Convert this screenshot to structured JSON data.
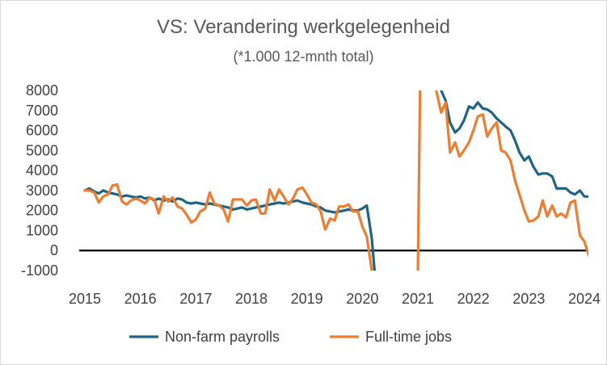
{
  "chart_data": {
    "type": "line",
    "title": "VS: Verandering werkgelegenheid",
    "subtitle": "(*1.000 12-mnth total)",
    "xlabel": "",
    "ylabel": "",
    "x_ticks": [
      "2015",
      "2016",
      "2017",
      "2018",
      "2019",
      "2020",
      "2021",
      "2022",
      "2023",
      "2024"
    ],
    "y_ticks": [
      "8000",
      "7000",
      "6000",
      "5000",
      "4000",
      "3000",
      "2000",
      "1000",
      "0",
      "-1000"
    ],
    "ylim": [
      -1000,
      8000
    ],
    "xlim": [
      2015.0,
      2024.1
    ],
    "grid": false,
    "legend_position": "bottom",
    "series": [
      {
        "name": "Non-farm payrolls",
        "color": "#1f6485",
        "points": [
          [
            2015.0,
            3000
          ],
          [
            2015.08,
            3100
          ],
          [
            2015.17,
            2950
          ],
          [
            2015.25,
            2850
          ],
          [
            2015.33,
            3000
          ],
          [
            2015.42,
            2900
          ],
          [
            2015.5,
            2850
          ],
          [
            2015.58,
            2800
          ],
          [
            2015.67,
            2700
          ],
          [
            2015.75,
            2750
          ],
          [
            2015.83,
            2700
          ],
          [
            2015.92,
            2650
          ],
          [
            2016.0,
            2700
          ],
          [
            2016.08,
            2600
          ],
          [
            2016.17,
            2650
          ],
          [
            2016.25,
            2500
          ],
          [
            2016.33,
            2600
          ],
          [
            2016.42,
            2500
          ],
          [
            2016.5,
            2550
          ],
          [
            2016.58,
            2450
          ],
          [
            2016.67,
            2600
          ],
          [
            2016.75,
            2550
          ],
          [
            2016.83,
            2400
          ],
          [
            2016.92,
            2350
          ],
          [
            2017.0,
            2400
          ],
          [
            2017.08,
            2350
          ],
          [
            2017.17,
            2300
          ],
          [
            2017.25,
            2350
          ],
          [
            2017.33,
            2300
          ],
          [
            2017.42,
            2250
          ],
          [
            2017.5,
            2200
          ],
          [
            2017.58,
            2150
          ],
          [
            2017.67,
            2050
          ],
          [
            2017.75,
            2100
          ],
          [
            2017.83,
            2150
          ],
          [
            2017.92,
            2050
          ],
          [
            2018.0,
            2100
          ],
          [
            2018.08,
            2150
          ],
          [
            2018.17,
            2200
          ],
          [
            2018.25,
            2250
          ],
          [
            2018.33,
            2300
          ],
          [
            2018.42,
            2350
          ],
          [
            2018.5,
            2400
          ],
          [
            2018.58,
            2350
          ],
          [
            2018.67,
            2400
          ],
          [
            2018.75,
            2450
          ],
          [
            2018.83,
            2500
          ],
          [
            2018.92,
            2400
          ],
          [
            2019.0,
            2350
          ],
          [
            2019.08,
            2300
          ],
          [
            2019.17,
            2200
          ],
          [
            2019.25,
            2150
          ],
          [
            2019.33,
            2000
          ],
          [
            2019.42,
            1950
          ],
          [
            2019.5,
            1900
          ],
          [
            2019.58,
            1950
          ],
          [
            2019.67,
            2000
          ],
          [
            2019.75,
            2050
          ],
          [
            2019.83,
            2000
          ],
          [
            2019.92,
            2000
          ],
          [
            2020.0,
            2100
          ],
          [
            2020.08,
            2250
          ],
          [
            2020.17,
            600
          ],
          [
            2020.22,
            -1000
          ]
        ],
        "points_segment_2": [
          [
            2021.42,
            8000
          ],
          [
            2021.5,
            7500
          ],
          [
            2021.58,
            6400
          ],
          [
            2021.67,
            5900
          ],
          [
            2021.75,
            6100
          ],
          [
            2021.83,
            6500
          ],
          [
            2021.92,
            7200
          ],
          [
            2022.0,
            7100
          ],
          [
            2022.08,
            7400
          ],
          [
            2022.17,
            7100
          ],
          [
            2022.25,
            7050
          ],
          [
            2022.33,
            6900
          ],
          [
            2022.42,
            6600
          ],
          [
            2022.5,
            6400
          ],
          [
            2022.58,
            6200
          ],
          [
            2022.67,
            6000
          ],
          [
            2022.75,
            5500
          ],
          [
            2022.83,
            4900
          ],
          [
            2022.92,
            4500
          ],
          [
            2023.0,
            4700
          ],
          [
            2023.08,
            4200
          ],
          [
            2023.17,
            3800
          ],
          [
            2023.25,
            3850
          ],
          [
            2023.33,
            3850
          ],
          [
            2023.42,
            3700
          ],
          [
            2023.5,
            3100
          ],
          [
            2023.58,
            3100
          ],
          [
            2023.67,
            3100
          ],
          [
            2023.75,
            2900
          ],
          [
            2023.83,
            2800
          ],
          [
            2023.92,
            3000
          ],
          [
            2024.0,
            2700
          ],
          [
            2024.08,
            2700
          ]
        ],
        "points_segment_0": [
          [
            2021.0,
            -1000
          ],
          [
            2021.0,
            -1000
          ]
        ]
      },
      {
        "name": "Full-time jobs",
        "color": "#ed7d31",
        "points": [
          [
            2015.0,
            3000
          ],
          [
            2015.08,
            3000
          ],
          [
            2015.17,
            2900
          ],
          [
            2015.25,
            2400
          ],
          [
            2015.33,
            2700
          ],
          [
            2015.42,
            2800
          ],
          [
            2015.5,
            3250
          ],
          [
            2015.58,
            3300
          ],
          [
            2015.67,
            2450
          ],
          [
            2015.75,
            2300
          ],
          [
            2015.83,
            2500
          ],
          [
            2015.92,
            2600
          ],
          [
            2016.0,
            2500
          ],
          [
            2016.08,
            2350
          ],
          [
            2016.17,
            2650
          ],
          [
            2016.25,
            2550
          ],
          [
            2016.33,
            1850
          ],
          [
            2016.42,
            2700
          ],
          [
            2016.5,
            2450
          ],
          [
            2016.58,
            2650
          ],
          [
            2016.67,
            2200
          ],
          [
            2016.75,
            2100
          ],
          [
            2016.83,
            1800
          ],
          [
            2016.92,
            1400
          ],
          [
            2017.0,
            1550
          ],
          [
            2017.08,
            1950
          ],
          [
            2017.17,
            2100
          ],
          [
            2017.25,
            2900
          ],
          [
            2017.33,
            2350
          ],
          [
            2017.42,
            2250
          ],
          [
            2017.5,
            2050
          ],
          [
            2017.58,
            1450
          ],
          [
            2017.67,
            2550
          ],
          [
            2017.75,
            2550
          ],
          [
            2017.83,
            2550
          ],
          [
            2017.92,
            2250
          ],
          [
            2018.0,
            2500
          ],
          [
            2018.08,
            2550
          ],
          [
            2018.17,
            1850
          ],
          [
            2018.25,
            1850
          ],
          [
            2018.33,
            3050
          ],
          [
            2018.42,
            2500
          ],
          [
            2018.5,
            3050
          ],
          [
            2018.58,
            2700
          ],
          [
            2018.67,
            2300
          ],
          [
            2018.75,
            2600
          ],
          [
            2018.83,
            3050
          ],
          [
            2018.92,
            3150
          ],
          [
            2019.0,
            2800
          ],
          [
            2019.08,
            2400
          ],
          [
            2019.17,
            2300
          ],
          [
            2019.25,
            1950
          ],
          [
            2019.33,
            1050
          ],
          [
            2019.42,
            1600
          ],
          [
            2019.5,
            1500
          ],
          [
            2019.58,
            2200
          ],
          [
            2019.67,
            2200
          ],
          [
            2019.75,
            2300
          ],
          [
            2019.83,
            1950
          ],
          [
            2019.92,
            1950
          ],
          [
            2020.0,
            1200
          ],
          [
            2020.08,
            700
          ],
          [
            2020.17,
            -1000
          ]
        ],
        "points_segment_2": [
          [
            2021.0,
            -1000
          ],
          [
            2021.04,
            8000
          ]
        ],
        "points_segment_3": [
          [
            2021.33,
            8000
          ],
          [
            2021.42,
            6900
          ],
          [
            2021.5,
            7400
          ],
          [
            2021.58,
            4900
          ],
          [
            2021.67,
            5400
          ],
          [
            2021.75,
            4700
          ],
          [
            2021.83,
            5000
          ],
          [
            2021.92,
            5400
          ],
          [
            2022.0,
            6000
          ],
          [
            2022.08,
            6700
          ],
          [
            2022.17,
            6800
          ],
          [
            2022.25,
            5700
          ],
          [
            2022.33,
            6100
          ],
          [
            2022.42,
            6400
          ],
          [
            2022.5,
            5000
          ],
          [
            2022.58,
            4900
          ],
          [
            2022.67,
            4500
          ],
          [
            2022.75,
            3500
          ],
          [
            2022.83,
            2800
          ],
          [
            2022.92,
            2000
          ],
          [
            2023.0,
            1450
          ],
          [
            2023.08,
            1500
          ],
          [
            2023.17,
            1700
          ],
          [
            2023.25,
            2500
          ],
          [
            2023.33,
            1700
          ],
          [
            2023.42,
            2250
          ],
          [
            2023.5,
            1700
          ],
          [
            2023.58,
            1850
          ],
          [
            2023.67,
            1650
          ],
          [
            2023.75,
            2400
          ],
          [
            2023.83,
            2500
          ],
          [
            2023.92,
            750
          ],
          [
            2024.0,
            450
          ],
          [
            2024.08,
            -250
          ]
        ]
      }
    ]
  }
}
